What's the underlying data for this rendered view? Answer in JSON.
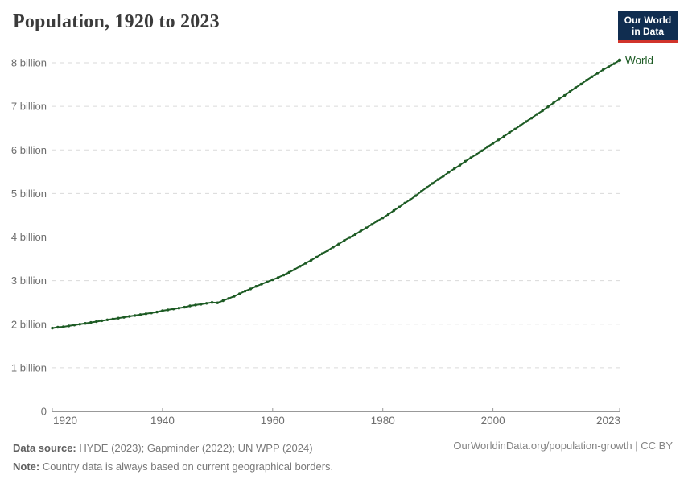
{
  "header": {
    "title": "Population, 1920 to 2023",
    "logo": {
      "line1": "Our World",
      "line2": "in Data",
      "bg_color": "#102d50",
      "accent_color": "#d1342b"
    }
  },
  "chart_data": {
    "type": "line",
    "title": "Population, 1920 to 2023",
    "x": {
      "start": 1920,
      "end": 2023,
      "step": 1
    },
    "series": [
      {
        "name": "World",
        "color": "#1d5b24",
        "unit": "billion",
        "values": [
          1.91,
          1.93,
          1.94,
          1.96,
          1.98,
          2.0,
          2.02,
          2.04,
          2.06,
          2.08,
          2.1,
          2.12,
          2.14,
          2.16,
          2.18,
          2.2,
          2.22,
          2.24,
          2.26,
          2.28,
          2.31,
          2.33,
          2.35,
          2.37,
          2.39,
          2.42,
          2.44,
          2.46,
          2.48,
          2.5,
          2.49,
          2.54,
          2.59,
          2.64,
          2.7,
          2.76,
          2.81,
          2.87,
          2.92,
          2.97,
          3.02,
          3.07,
          3.13,
          3.19,
          3.26,
          3.33,
          3.4,
          3.47,
          3.54,
          3.62,
          3.69,
          3.77,
          3.84,
          3.92,
          3.99,
          4.06,
          4.14,
          4.21,
          4.29,
          4.37,
          4.44,
          4.52,
          4.61,
          4.69,
          4.78,
          4.86,
          4.95,
          5.05,
          5.14,
          5.23,
          5.32,
          5.4,
          5.49,
          5.57,
          5.65,
          5.74,
          5.82,
          5.9,
          5.98,
          6.07,
          6.15,
          6.23,
          6.31,
          6.4,
          6.48,
          6.56,
          6.65,
          6.73,
          6.82,
          6.9,
          6.99,
          7.08,
          7.17,
          7.25,
          7.34,
          7.43,
          7.51,
          7.6,
          7.68,
          7.76,
          7.84,
          7.91,
          7.98,
          8.06
        ]
      }
    ],
    "x_tick_values": [
      1920,
      1940,
      1960,
      1980,
      2000,
      2023
    ],
    "x_tick_labels": [
      "1920",
      "1940",
      "1960",
      "1980",
      "2000",
      "2023"
    ],
    "y_tick_values": [
      0,
      1,
      2,
      3,
      4,
      5,
      6,
      7,
      8
    ],
    "y_tick_labels": [
      "0",
      "1 billion",
      "2 billion",
      "3 billion",
      "4 billion",
      "5 billion",
      "6 billion",
      "7 billion",
      "8 billion"
    ],
    "xlim": [
      1920,
      2023
    ],
    "ylim": [
      0,
      8.3
    ],
    "xlabel": "",
    "ylabel": "",
    "grid": "horizontal-dashed",
    "legend": "series label at right end of line",
    "colors": {
      "gridline": "#dadada",
      "axis": "#999999",
      "tick_label": "#6e6e6e"
    }
  },
  "footer": {
    "source_label": "Data source:",
    "source_text": " HYDE (2023); Gapminder (2022); UN WPP (2024)",
    "note_label": "Note:",
    "note_text": " Country data is always based on current geographical borders.",
    "link_text": "OurWorldinData.org/population-growth | CC BY"
  }
}
